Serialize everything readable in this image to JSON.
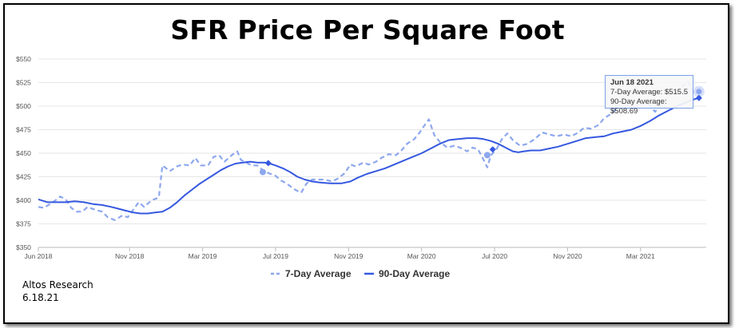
{
  "title": "SFR Price Per Square Foot",
  "source": {
    "line1": "Altos Research",
    "line2": "6.18.21"
  },
  "tooltip": {
    "date": "Jun 18 2021",
    "line7": "7-Day Average: $515.5",
    "line90": "90-Day Average: $508.69"
  },
  "colors": {
    "seven_day": "#8da7ee",
    "ninety_day": "#3558e0"
  },
  "chart_data": {
    "type": "line",
    "title": "SFR Price Per Square Foot",
    "y_ticks": [
      "$350",
      "$375",
      "$400",
      "$425",
      "$450",
      "$475",
      "$500",
      "$525",
      "$550"
    ],
    "ylim": [
      350,
      550
    ],
    "x_ticks": [
      {
        "label": "Jun 2018",
        "t": 0
      },
      {
        "label": "Nov 2018",
        "t": 5
      },
      {
        "label": "Mar 2019",
        "t": 9
      },
      {
        "label": "Jul 2019",
        "t": 13
      },
      {
        "label": "Nov 2019",
        "t": 17
      },
      {
        "label": "Mar 2020",
        "t": 21
      },
      {
        "label": "Jul 2020",
        "t": 25
      },
      {
        "label": "Nov 2020",
        "t": 29
      },
      {
        "label": "Mar 2021",
        "t": 33
      }
    ],
    "xlim": [
      0,
      36.6
    ],
    "legend": {
      "position": "bottom-center"
    },
    "series": [
      {
        "name": "7-Day Average",
        "style": "dashed",
        "points": [
          [
            0,
            393
          ],
          [
            0.3,
            392
          ],
          [
            0.8,
            398
          ],
          [
            1.2,
            404
          ],
          [
            1.5,
            401
          ],
          [
            1.8,
            392
          ],
          [
            2.1,
            388
          ],
          [
            2.4,
            388
          ],
          [
            2.7,
            393
          ],
          [
            3.1,
            390
          ],
          [
            3.5,
            388
          ],
          [
            3.8,
            382
          ],
          [
            4.2,
            379
          ],
          [
            4.6,
            384
          ],
          [
            4.9,
            382
          ],
          [
            5.2,
            390
          ],
          [
            5.5,
            398
          ],
          [
            5.8,
            393
          ],
          [
            6.2,
            400
          ],
          [
            6.6,
            403
          ],
          [
            6.8,
            437
          ],
          [
            7.2,
            431
          ],
          [
            7.6,
            436
          ],
          [
            7.9,
            438
          ],
          [
            8.3,
            437
          ],
          [
            8.6,
            445
          ],
          [
            8.9,
            437
          ],
          [
            9.3,
            437
          ],
          [
            9.6,
            446
          ],
          [
            9.9,
            448
          ],
          [
            10.2,
            441
          ],
          [
            10.6,
            448
          ],
          [
            10.9,
            452
          ],
          [
            11.1,
            443
          ],
          [
            11.4,
            440
          ],
          [
            11.7,
            437
          ],
          [
            12,
            437
          ],
          [
            12.3,
            432
          ],
          [
            12.6,
            429
          ],
          [
            13,
            426
          ],
          [
            13.3,
            421
          ],
          [
            13.6,
            418
          ],
          [
            14,
            412
          ],
          [
            14.4,
            408
          ],
          [
            14.7,
            418
          ],
          [
            15,
            422
          ],
          [
            15.3,
            422
          ],
          [
            15.7,
            422
          ],
          [
            16.1,
            420
          ],
          [
            16.4,
            423
          ],
          [
            16.8,
            429
          ],
          [
            17.1,
            438
          ],
          [
            17.4,
            436
          ],
          [
            17.8,
            440
          ],
          [
            18.1,
            438
          ],
          [
            18.5,
            441
          ],
          [
            18.8,
            445
          ],
          [
            19.2,
            449
          ],
          [
            19.6,
            448
          ],
          [
            19.9,
            453
          ],
          [
            20.2,
            460
          ],
          [
            20.6,
            465
          ],
          [
            20.9,
            472
          ],
          [
            21.1,
            478
          ],
          [
            21.4,
            486
          ],
          [
            21.7,
            469
          ],
          [
            22,
            462
          ],
          [
            22.4,
            456
          ],
          [
            22.8,
            458
          ],
          [
            23.1,
            456
          ],
          [
            23.5,
            452
          ],
          [
            23.8,
            456
          ],
          [
            24.1,
            454
          ],
          [
            24.4,
            443
          ],
          [
            24.6,
            435
          ],
          [
            24.8,
            448
          ],
          [
            25.1,
            454
          ],
          [
            25.4,
            465
          ],
          [
            25.7,
            471
          ],
          [
            26,
            464
          ],
          [
            26.4,
            458
          ],
          [
            26.8,
            460
          ],
          [
            27.2,
            465
          ],
          [
            27.6,
            472
          ],
          [
            28,
            470
          ],
          [
            28.4,
            468
          ],
          [
            28.8,
            470
          ],
          [
            29.2,
            468
          ],
          [
            29.6,
            472
          ],
          [
            29.9,
            477
          ],
          [
            30.3,
            476
          ],
          [
            30.7,
            480
          ],
          [
            31,
            487
          ],
          [
            31.4,
            492
          ],
          [
            31.8,
            500
          ],
          [
            32.2,
            501
          ],
          [
            32.6,
            498
          ],
          [
            33,
            502
          ],
          [
            33.4,
            503
          ],
          [
            33.8,
            494
          ],
          [
            34.1,
            502
          ],
          [
            34.5,
            511
          ],
          [
            35,
            515
          ],
          [
            35.4,
            523
          ],
          [
            35.6,
            526
          ],
          [
            35.9,
            514
          ],
          [
            36.2,
            515.5
          ]
        ]
      },
      {
        "name": "90-Day Average",
        "style": "solid",
        "points": [
          [
            0,
            401
          ],
          [
            0.5,
            398
          ],
          [
            1,
            398
          ],
          [
            1.5,
            398
          ],
          [
            2,
            399
          ],
          [
            2.5,
            398
          ],
          [
            3,
            396
          ],
          [
            3.5,
            395
          ],
          [
            4,
            393
          ],
          [
            4.4,
            391
          ],
          [
            4.8,
            389
          ],
          [
            5.2,
            387
          ],
          [
            5.6,
            386
          ],
          [
            6,
            386
          ],
          [
            6.4,
            387
          ],
          [
            6.8,
            388
          ],
          [
            7.2,
            392
          ],
          [
            7.6,
            398
          ],
          [
            8,
            405
          ],
          [
            8.4,
            411
          ],
          [
            8.8,
            417
          ],
          [
            9.2,
            422
          ],
          [
            9.6,
            427
          ],
          [
            10,
            432
          ],
          [
            10.4,
            436
          ],
          [
            10.8,
            439
          ],
          [
            11.2,
            440
          ],
          [
            11.6,
            441
          ],
          [
            12,
            440
          ],
          [
            12.4,
            440
          ],
          [
            12.6,
            439.5
          ],
          [
            13,
            437
          ],
          [
            13.4,
            434
          ],
          [
            13.8,
            430
          ],
          [
            14.2,
            425
          ],
          [
            14.6,
            422
          ],
          [
            15,
            420
          ],
          [
            15.4,
            419
          ],
          [
            16,
            418
          ],
          [
            16.6,
            418
          ],
          [
            17.1,
            420
          ],
          [
            17.5,
            424
          ],
          [
            18,
            428
          ],
          [
            18.5,
            431
          ],
          [
            19,
            434
          ],
          [
            19.5,
            438
          ],
          [
            20,
            442
          ],
          [
            20.5,
            446
          ],
          [
            21,
            450
          ],
          [
            21.5,
            455
          ],
          [
            22,
            460
          ],
          [
            22.5,
            464
          ],
          [
            23,
            465
          ],
          [
            23.5,
            466
          ],
          [
            24,
            466
          ],
          [
            24.4,
            465
          ],
          [
            24.8,
            463
          ],
          [
            25.2,
            460
          ],
          [
            25.6,
            456
          ],
          [
            26,
            452
          ],
          [
            26.3,
            451
          ],
          [
            26.6,
            452
          ],
          [
            27,
            453
          ],
          [
            27.5,
            453
          ],
          [
            28,
            455
          ],
          [
            28.5,
            457
          ],
          [
            29,
            460
          ],
          [
            29.5,
            463
          ],
          [
            30,
            466
          ],
          [
            30.5,
            467
          ],
          [
            31,
            468
          ],
          [
            31.5,
            471
          ],
          [
            32,
            473
          ],
          [
            32.5,
            475
          ],
          [
            33,
            479
          ],
          [
            33.5,
            484
          ],
          [
            34,
            490
          ],
          [
            34.5,
            495
          ],
          [
            35,
            500
          ],
          [
            35.5,
            504
          ],
          [
            35.9,
            507
          ],
          [
            36.2,
            508.69
          ]
        ]
      }
    ]
  }
}
